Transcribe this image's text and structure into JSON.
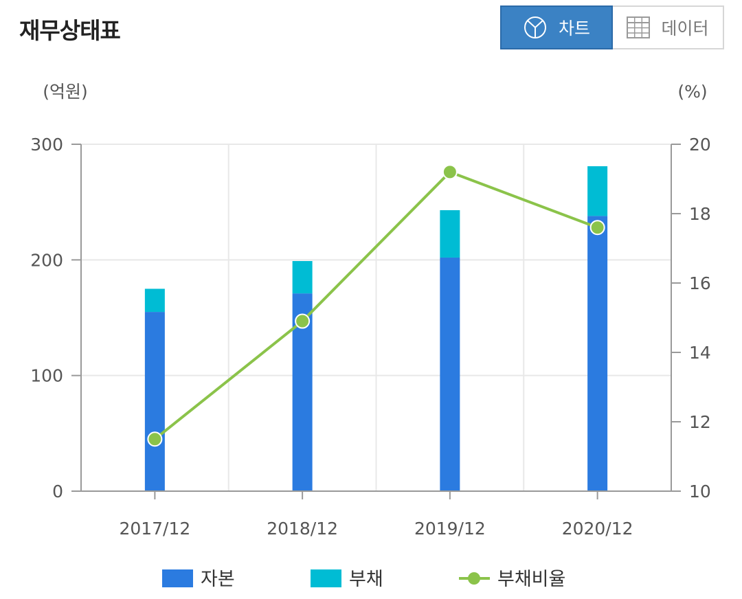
{
  "header": {
    "title": "재무상태표"
  },
  "view_toggle": {
    "chart_label": "차트",
    "data_label": "데이터",
    "chart_icon": "pie-chart-icon",
    "data_icon": "table-grid-icon",
    "active": "chart"
  },
  "chart_data": {
    "type": "bar",
    "stacked": true,
    "categories": [
      "2017/12",
      "2018/12",
      "2019/12",
      "2020/12"
    ],
    "series": [
      {
        "name": "자본",
        "type": "bar",
        "axis": "left",
        "color": "#2b7be0",
        "values": [
          155,
          171,
          202,
          238
        ]
      },
      {
        "name": "부채",
        "type": "bar",
        "axis": "left",
        "color": "#00bcd4",
        "values": [
          20,
          28,
          41,
          43
        ]
      },
      {
        "name": "부채비율",
        "type": "line",
        "axis": "right",
        "color": "#8bc34a",
        "values": [
          11.5,
          14.9,
          19.2,
          17.6
        ]
      }
    ],
    "ylabel": "(억원)",
    "y2label": "(%)",
    "ylim": [
      0,
      300
    ],
    "y2lim": [
      10,
      20
    ],
    "yticks": [
      0,
      100,
      200,
      300
    ],
    "y2ticks": [
      10,
      12,
      14,
      16,
      18,
      20
    ],
    "grid": true,
    "legend_position": "bottom"
  }
}
